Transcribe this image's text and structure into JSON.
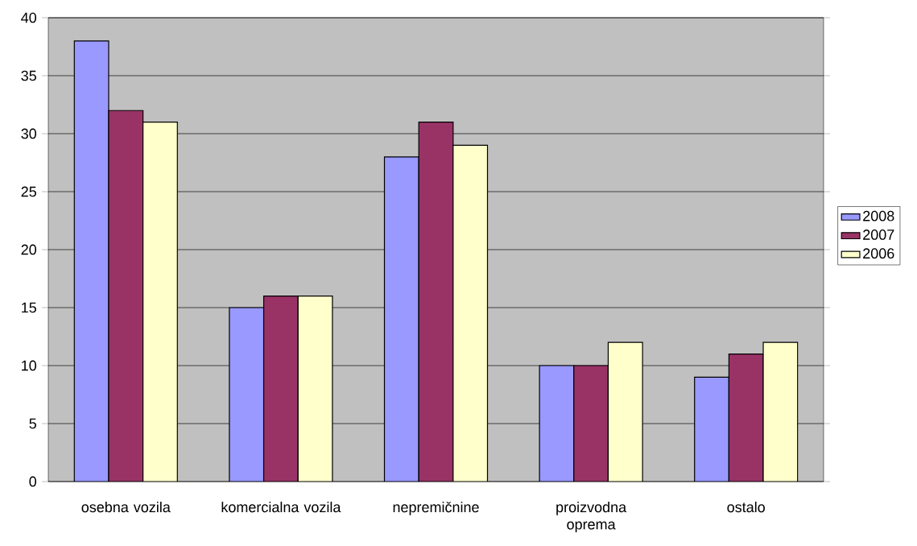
{
  "chart_data": {
    "type": "bar",
    "categories": [
      "osebna vozila",
      "komercialna vozila",
      "nepremičnine",
      "proizvodna oprema",
      "ostalo"
    ],
    "series": [
      {
        "name": "2008",
        "color": "#9999ff",
        "values": [
          38,
          15,
          28,
          10,
          9
        ]
      },
      {
        "name": "2007",
        "color": "#993366",
        "values": [
          32,
          16,
          31,
          10,
          11
        ]
      },
      {
        "name": "2006",
        "color": "#ffffcc",
        "values": [
          31,
          16,
          29,
          12,
          12
        ]
      }
    ],
    "ylim": [
      0,
      40
    ],
    "yticks": [
      0,
      5,
      10,
      15,
      20,
      25,
      30,
      35,
      40
    ],
    "grid": "y",
    "legend": "right"
  }
}
